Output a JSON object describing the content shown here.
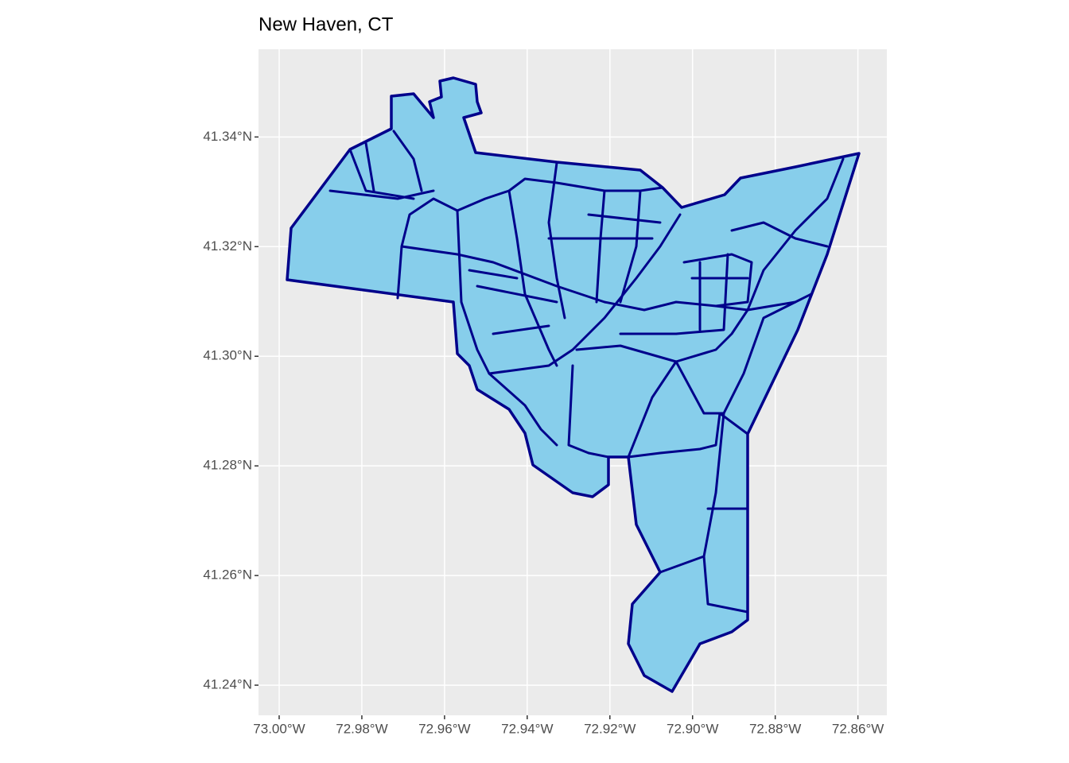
{
  "chart_data": {
    "type": "map",
    "title": "New Haven, CT",
    "xlim": [
      -73.005,
      -72.853
    ],
    "ylim": [
      41.2345,
      41.356
    ],
    "xticks": [
      {
        "value": -73.0,
        "label": "73.00°W"
      },
      {
        "value": -72.98,
        "label": "72.98°W"
      },
      {
        "value": -72.96,
        "label": "72.96°W"
      },
      {
        "value": -72.94,
        "label": "72.94°W"
      },
      {
        "value": -72.92,
        "label": "72.92°W"
      },
      {
        "value": -72.9,
        "label": "72.90°W"
      },
      {
        "value": -72.88,
        "label": "72.88°W"
      },
      {
        "value": -72.86,
        "label": "72.86°W"
      }
    ],
    "yticks": [
      {
        "value": 41.24,
        "label": "41.24°N"
      },
      {
        "value": 41.26,
        "label": "41.26°N"
      },
      {
        "value": 41.28,
        "label": "41.28°N"
      },
      {
        "value": 41.3,
        "label": "41.30°N"
      },
      {
        "value": 41.32,
        "label": "41.32°N"
      },
      {
        "value": 41.34,
        "label": "41.34°N"
      }
    ],
    "grid": true,
    "fill": "#87ceeb",
    "stroke": "#00008b"
  }
}
